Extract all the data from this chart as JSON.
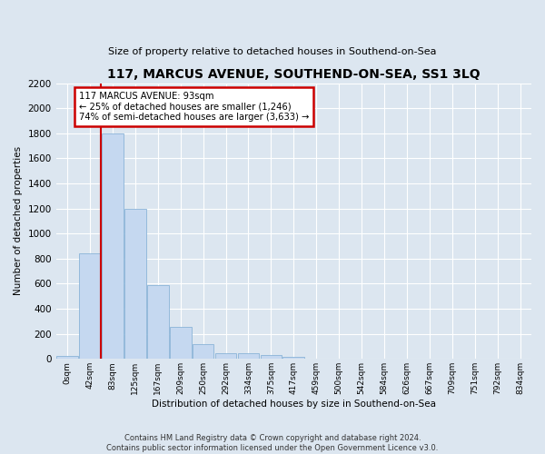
{
  "title": "117, MARCUS AVENUE, SOUTHEND-ON-SEA, SS1 3LQ",
  "subtitle": "Size of property relative to detached houses in Southend-on-Sea",
  "xlabel": "Distribution of detached houses by size in Southend-on-Sea",
  "ylabel": "Number of detached properties",
  "footer_line1": "Contains HM Land Registry data © Crown copyright and database right 2024.",
  "footer_line2": "Contains public sector information licensed under the Open Government Licence v3.0.",
  "bar_labels": [
    "0sqm",
    "42sqm",
    "83sqm",
    "125sqm",
    "167sqm",
    "209sqm",
    "250sqm",
    "292sqm",
    "334sqm",
    "375sqm",
    "417sqm",
    "459sqm",
    "500sqm",
    "542sqm",
    "584sqm",
    "626sqm",
    "667sqm",
    "709sqm",
    "751sqm",
    "792sqm",
    "834sqm"
  ],
  "bar_values": [
    25,
    840,
    1800,
    1200,
    590,
    255,
    120,
    45,
    45,
    30,
    15,
    0,
    0,
    0,
    0,
    0,
    0,
    0,
    0,
    0,
    0
  ],
  "bar_color": "#c5d8f0",
  "bar_edge_color": "#8ab4d8",
  "background_color": "#dce6f0",
  "plot_bg_color": "#dce6f0",
  "grid_color": "#ffffff",
  "annotation_line1": "117 MARCUS AVENUE: 93sqm",
  "annotation_line2": "← 25% of detached houses are smaller (1,246)",
  "annotation_line3": "74% of semi-detached houses are larger (3,633) →",
  "annotation_box_color": "#ffffff",
  "annotation_box_edge": "#cc0000",
  "vline_color": "#cc0000",
  "vline_x": 1.48,
  "ylim": [
    0,
    2200
  ],
  "yticks": [
    0,
    200,
    400,
    600,
    800,
    1000,
    1200,
    1400,
    1600,
    1800,
    2000,
    2200
  ]
}
